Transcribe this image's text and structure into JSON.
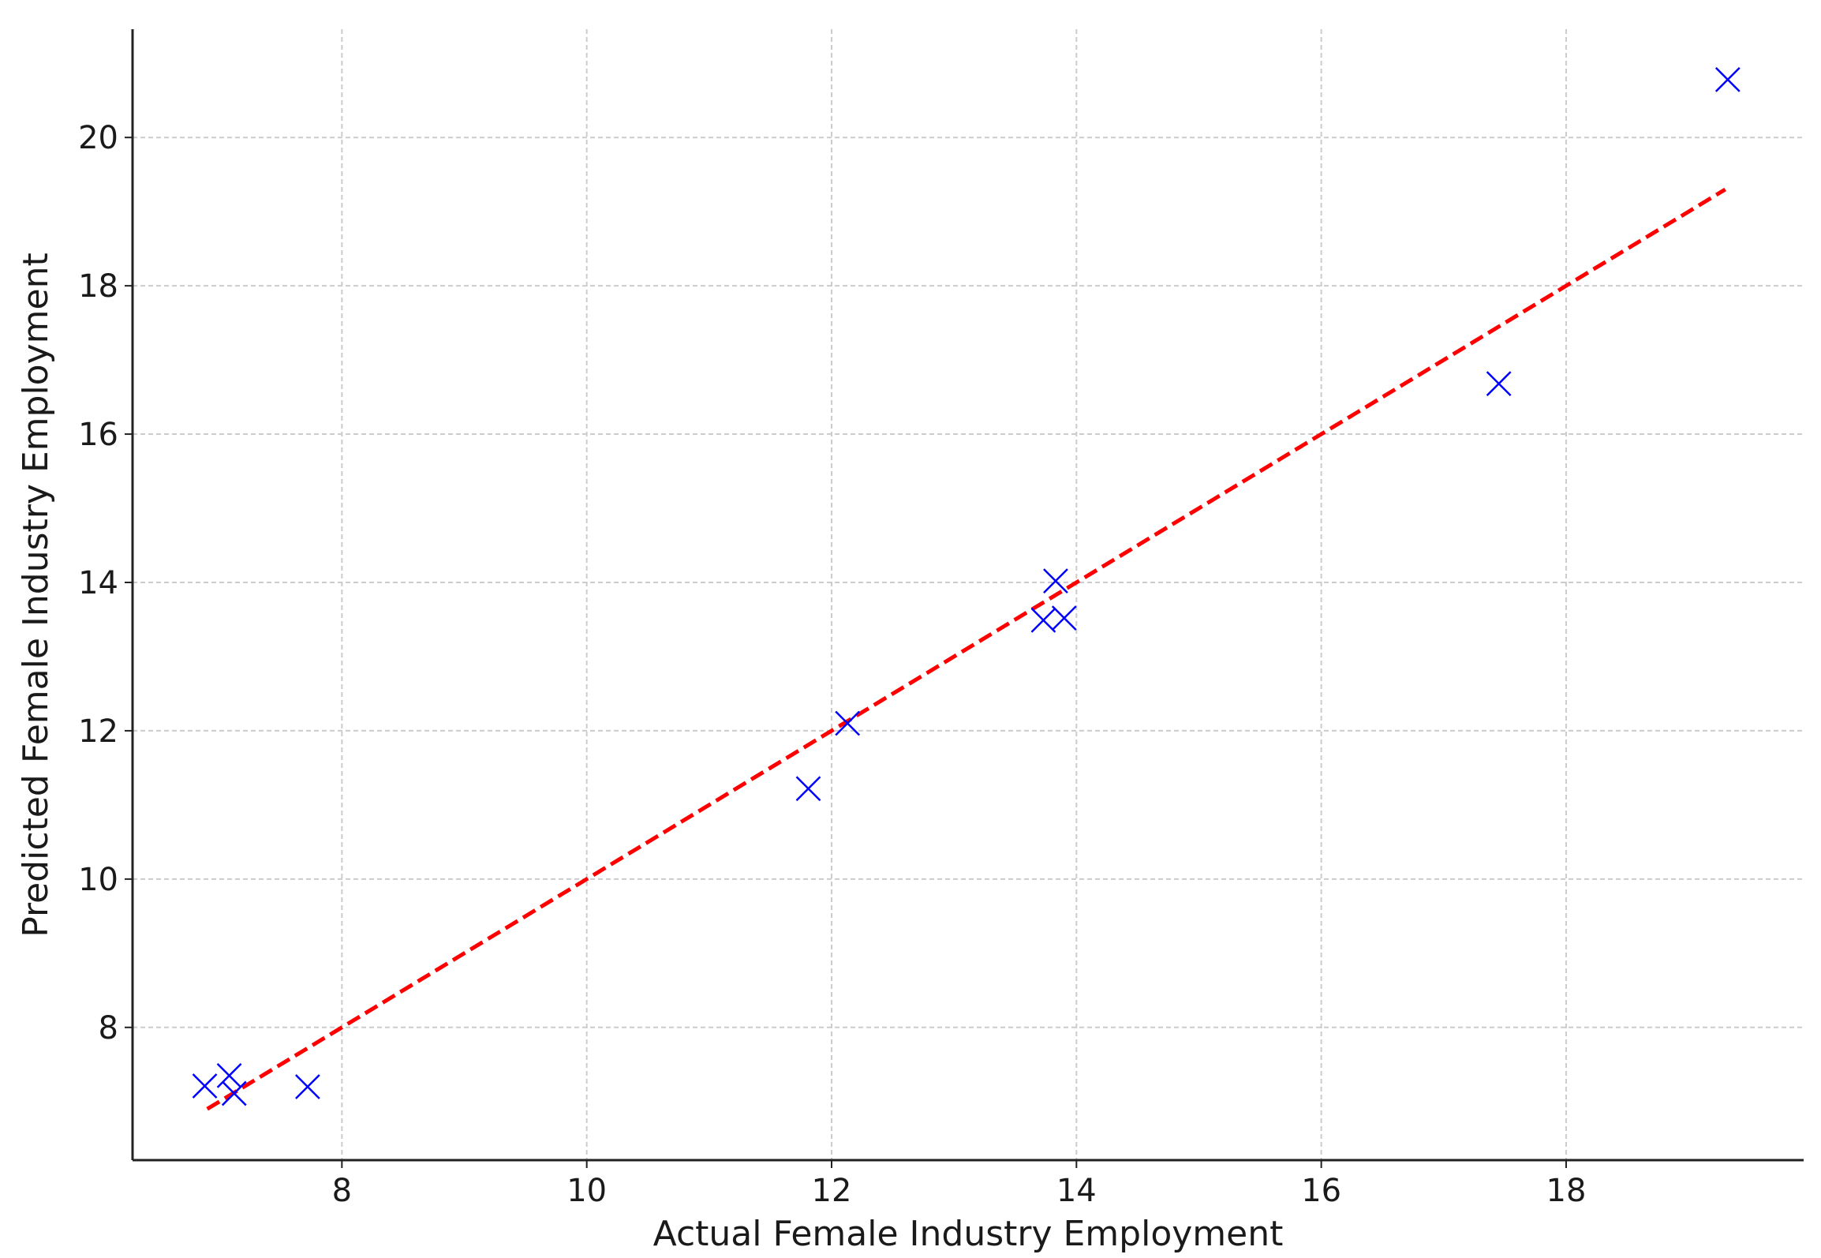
{
  "chart_data": {
    "type": "scatter",
    "xlabel": "Actual Female Industry Employment",
    "ylabel": "Predicted Female Industry Employment",
    "x": [
      6.88,
      7.08,
      7.12,
      7.72,
      11.81,
      12.13,
      13.73,
      13.83,
      13.9,
      17.45,
      19.32
    ],
    "values": [
      7.21,
      7.35,
      7.11,
      7.2,
      11.22,
      12.1,
      13.49,
      14.02,
      13.52,
      16.68,
      20.78
    ],
    "color": "#0000ff",
    "fit_line": {
      "x": [
        6.9,
        19.3
      ],
      "values": [
        6.9,
        19.3
      ],
      "color": "#ff0000"
    },
    "xlim": [
      6.29,
      19.94
    ],
    "ylim": [
      6.21,
      21.46
    ],
    "xticks": [
      8,
      10,
      12,
      14,
      16,
      18
    ],
    "yticks": [
      8,
      10,
      12,
      14,
      16,
      18,
      20
    ],
    "grid": true
  }
}
